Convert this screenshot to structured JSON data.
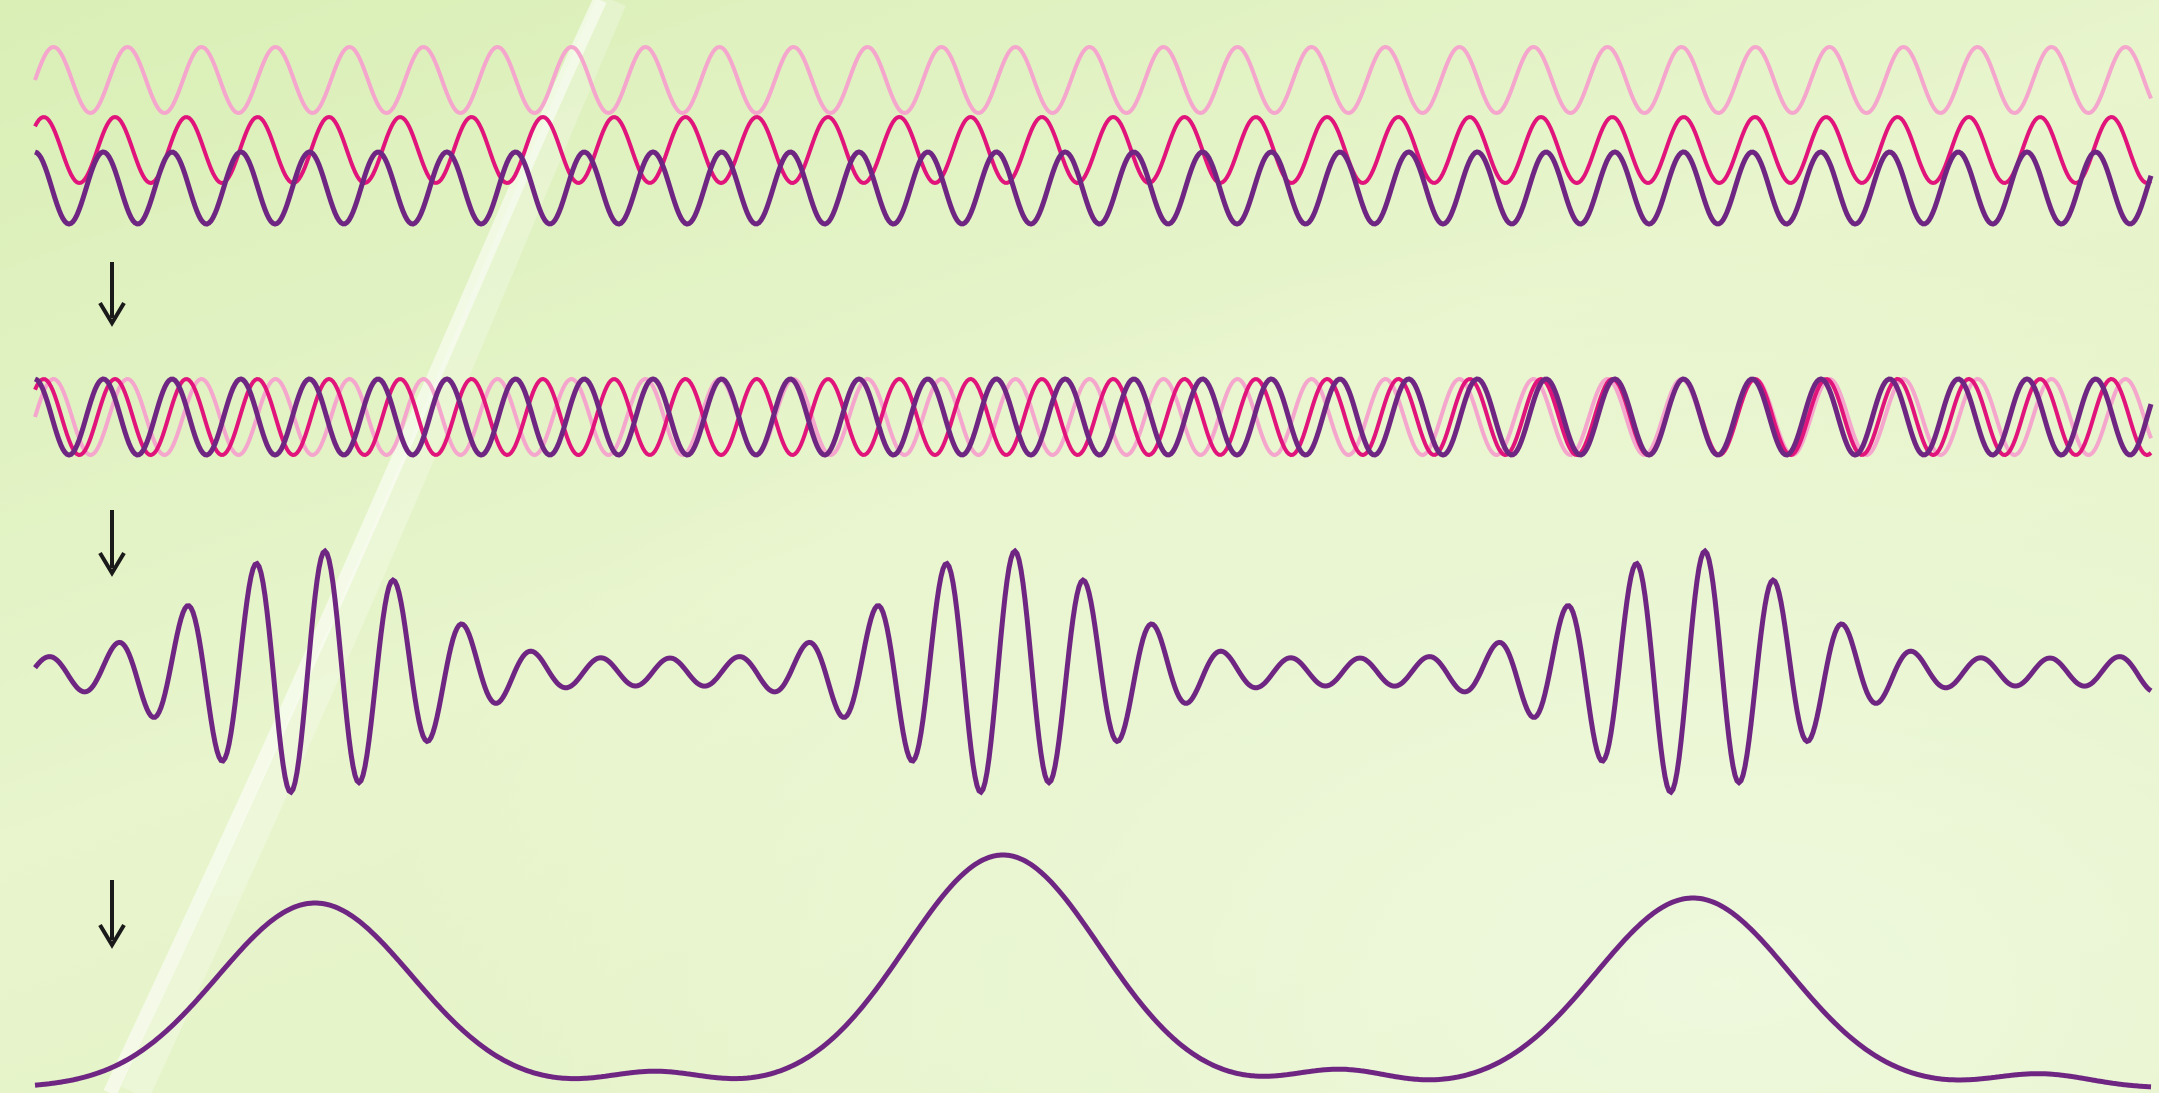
{
  "colors": {
    "background": "#e4f2c4",
    "light_pink": "#f4a6cc",
    "magenta": "#e0147a",
    "purple": "#6f2683",
    "arrow": "#1a1a1a",
    "glare": "#ffffff"
  },
  "waves": {
    "light_pink_period": 74,
    "magenta_period": 71.3,
    "purple_period": 68.7
  },
  "envelope_peaks": [
    3,
    3,
    3
  ]
}
